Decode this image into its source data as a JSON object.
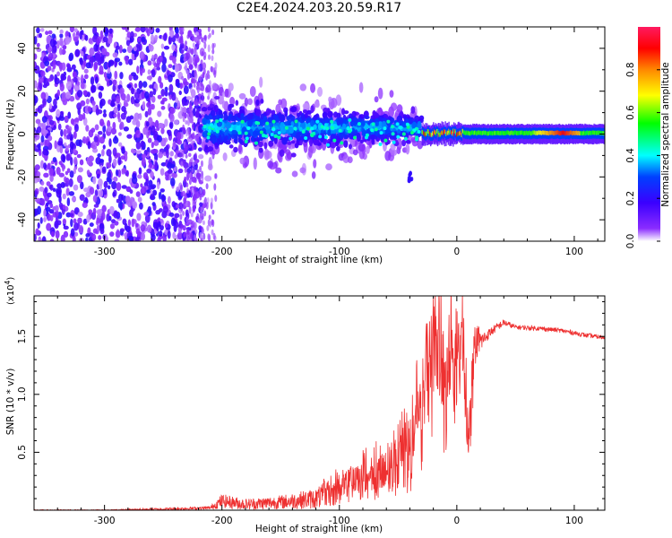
{
  "title": "C2E4.2024.203.20.59.R17",
  "colors": {
    "snr_line": "#ee3030",
    "colormap": [
      "#ffffff",
      "#6a00ff",
      "#1a1aff",
      "#00ffff",
      "#00ff00",
      "#ffff00",
      "#ff8800",
      "#ff0000",
      "#ff1a55"
    ]
  },
  "chart_data": [
    {
      "type": "heatmap",
      "xlabel": "Height of straight line (km)",
      "ylabel": "Frequency (Hz)",
      "xlim": [
        -360,
        126
      ],
      "ylim": [
        -50,
        50
      ],
      "x_ticks": [
        -300,
        -200,
        -100,
        0,
        100
      ],
      "x_tick_labels": [
        "-300",
        "-200",
        "-100",
        "0",
        "100"
      ],
      "y_ticks": [
        -40,
        -20,
        0,
        20,
        40
      ],
      "y_tick_labels": [
        "-40",
        "-20",
        "0",
        "20",
        "40"
      ],
      "colorbar": {
        "label": "Normalized spectral amplitude",
        "range": [
          0,
          1
        ],
        "ticks": [
          0.0,
          0.2,
          0.4,
          0.6,
          0.8
        ],
        "tick_labels": [
          "0.0",
          "0.2",
          "0.4",
          "0.6",
          "0.8"
        ]
      },
      "regions": [
        {
          "x_range": [
            -360,
            -215
          ],
          "freq_range": [
            -50,
            50
          ],
          "amplitude": 0.1,
          "pattern": "broadband noise"
        },
        {
          "x_range": [
            -215,
            -30
          ],
          "freq_range": [
            -20,
            20
          ],
          "amplitude": 0.25,
          "pattern": "scattered signal"
        },
        {
          "x_range": [
            -30,
            126
          ],
          "freq_range": [
            -4,
            4
          ],
          "amplitude": 0.65,
          "pattern": "narrow band near 0 Hz"
        }
      ],
      "grid": false
    },
    {
      "type": "line",
      "xlabel": "Height of straight line (km)",
      "ylabel": "SNR (10 * v/v)",
      "y_scale_label": "(x10",
      "y_scale_exponent": "4",
      "y_scale_close": ")",
      "xlim": [
        -360,
        126
      ],
      "ylim": [
        0,
        1.85
      ],
      "x_ticks": [
        -300,
        -200,
        -100,
        0,
        100
      ],
      "x_tick_labels": [
        "-300",
        "-200",
        "-100",
        "0",
        "100"
      ],
      "y_ticks": [
        0.5,
        1.0,
        1.5
      ],
      "y_tick_labels": [
        "0.5",
        "1.0",
        "1.5"
      ],
      "series": [
        {
          "x": [
            -360,
            -300,
            -250,
            -210,
            -200,
            -180,
            -150,
            -120,
            -100,
            -80,
            -60,
            -50,
            -40,
            -30,
            -25,
            -20,
            -15,
            -10,
            -5,
            0,
            5,
            10,
            15,
            20,
            25,
            30,
            40,
            50,
            70,
            90,
            100,
            110,
            126
          ],
          "y": [
            0.0,
            0.0,
            0.01,
            0.02,
            0.08,
            0.05,
            0.07,
            0.1,
            0.18,
            0.25,
            0.3,
            0.38,
            0.5,
            0.75,
            1.2,
            1.0,
            1.5,
            0.8,
            1.3,
            1.0,
            1.45,
            0.5,
            1.3,
            1.45,
            1.5,
            1.55,
            1.62,
            1.58,
            1.57,
            1.55,
            1.53,
            1.51,
            1.49
          ],
          "noise_amplitude": [
            0.005,
            0.005,
            0.01,
            0.015,
            0.06,
            0.05,
            0.06,
            0.09,
            0.14,
            0.17,
            0.22,
            0.25,
            0.35,
            0.45,
            0.55,
            0.55,
            0.6,
            0.5,
            0.5,
            0.45,
            0.3,
            0.25,
            0.2,
            0.1,
            0.05,
            0.04,
            0.03,
            0.02,
            0.02,
            0.02,
            0.02,
            0.02,
            0.02
          ]
        }
      ],
      "grid": false
    }
  ]
}
